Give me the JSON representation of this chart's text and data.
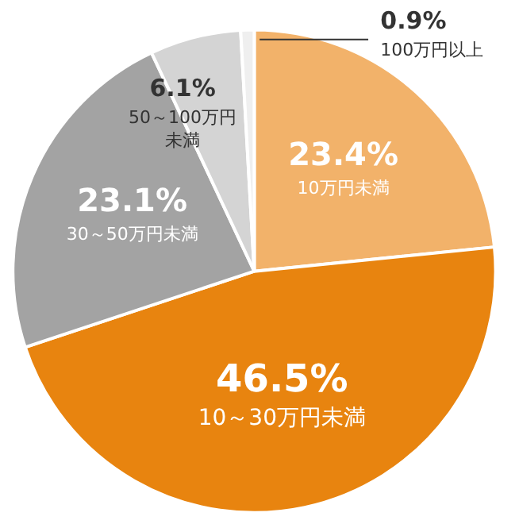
{
  "chart_data": {
    "type": "pie",
    "categories": [
      "10万円未満",
      "10～30万円未満",
      "30～50万円未満",
      "50～100万円未満",
      "100万円以上"
    ],
    "values": [
      23.4,
      46.5,
      23.1,
      6.1,
      0.9
    ],
    "colors": [
      "#f2b26a",
      "#e8840f",
      "#a3a3a3",
      "#d4d4d4",
      "#efefef"
    ],
    "value_labels": [
      "23.4%",
      "46.5%",
      "23.1%",
      "6.1%",
      "0.9%"
    ]
  }
}
